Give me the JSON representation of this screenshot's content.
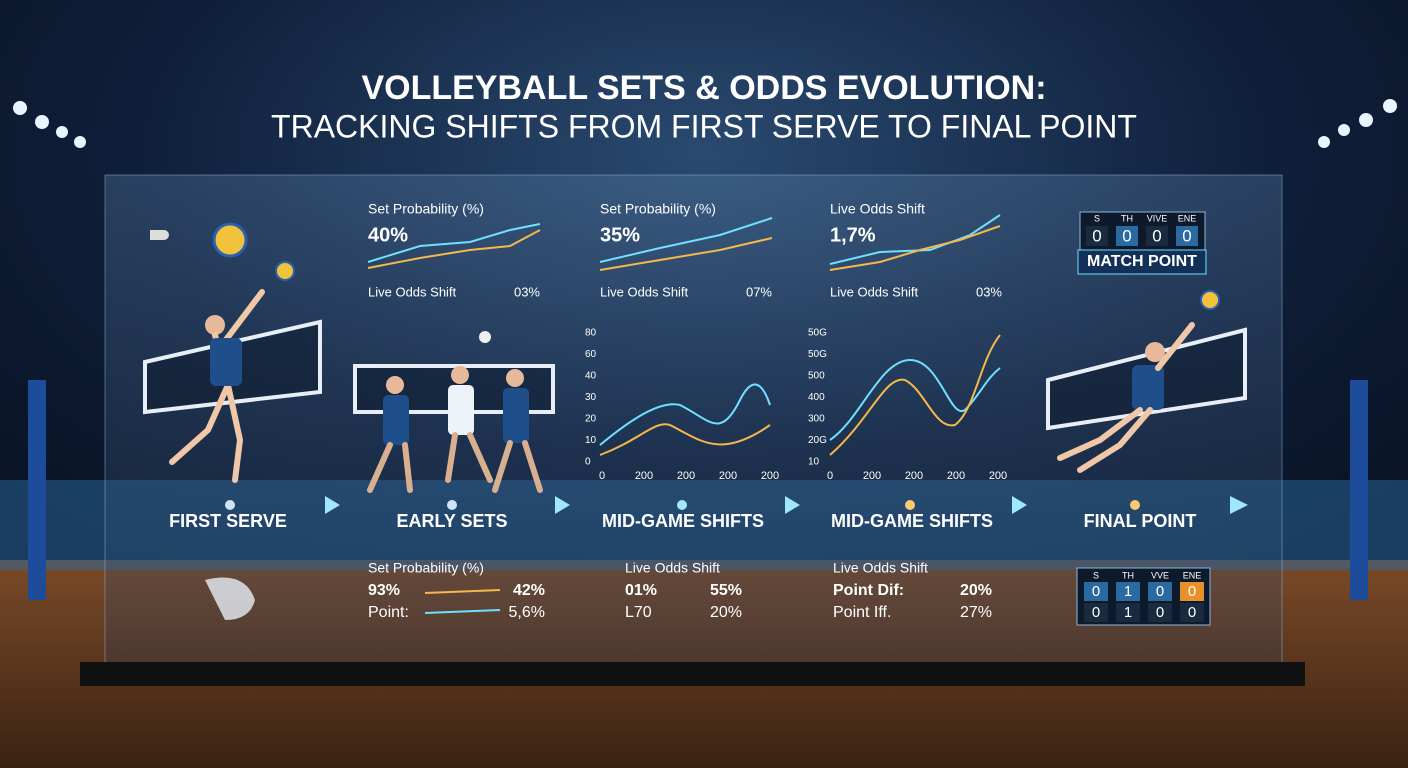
{
  "title": "VOLLEYBALL SETS & ODDS EVOLUTION:",
  "subtitle": "TRACKING SHIFTS FROM FIRST SERVE TO FINAL POINT",
  "top_panels": [
    {
      "label": "Set Probability (%)",
      "value": "40%",
      "footer": "Live Odds Shift",
      "footer_value": "03%"
    },
    {
      "label": "Set Probability (%)",
      "value": "35%",
      "footer": "Live Odds Shift",
      "footer_value": "07%"
    },
    {
      "label": "Live Odds Shift",
      "value": "1,7%",
      "footer": "Live Odds Shift",
      "footer_value": "03%"
    }
  ],
  "scoreboard_top": {
    "headers": [
      "S",
      "TH",
      "VIVE",
      "ENE"
    ],
    "values": [
      "0",
      "0",
      "0",
      "0"
    ],
    "badge": "MATCH POINT"
  },
  "mid_charts": [
    {
      "yticks": [
        "80",
        "60",
        "40",
        "30",
        "20",
        "10",
        "0"
      ],
      "xticks": [
        "0",
        "200",
        "200",
        "200",
        "200"
      ]
    },
    {
      "yticks": [
        "50G",
        "50G",
        "500",
        "400",
        "300",
        "20G",
        "10"
      ],
      "xticks": [
        "0",
        "200",
        "200",
        "200",
        "200"
      ]
    }
  ],
  "timeline": [
    "FIRST SERVE",
    "EARLY SETS",
    "MID-GAME SHIFTS",
    "MID-GAME SHIFTS",
    "FINAL POINT"
  ],
  "bottom_panels": [
    {
      "title": "Set Probability (%)",
      "rows": [
        [
          "93%",
          "42%"
        ],
        [
          "Point:",
          "5,6%"
        ]
      ]
    },
    {
      "title": "Live Odds Shift",
      "rows": [
        [
          "01%",
          "55%"
        ],
        [
          "L70",
          "20%"
        ]
      ]
    },
    {
      "title": "Live Odds Shift",
      "rows": [
        [
          "Point Dif:",
          "20%"
        ],
        [
          "Point Iff.",
          "27%"
        ]
      ]
    }
  ],
  "scoreboard_bottom": {
    "headers": [
      "S",
      "TH",
      "VVE",
      "ENE"
    ],
    "rows": [
      [
        "0",
        "1",
        "0",
        "0"
      ],
      [
        "0",
        "1",
        "0",
        "0"
      ]
    ]
  }
}
